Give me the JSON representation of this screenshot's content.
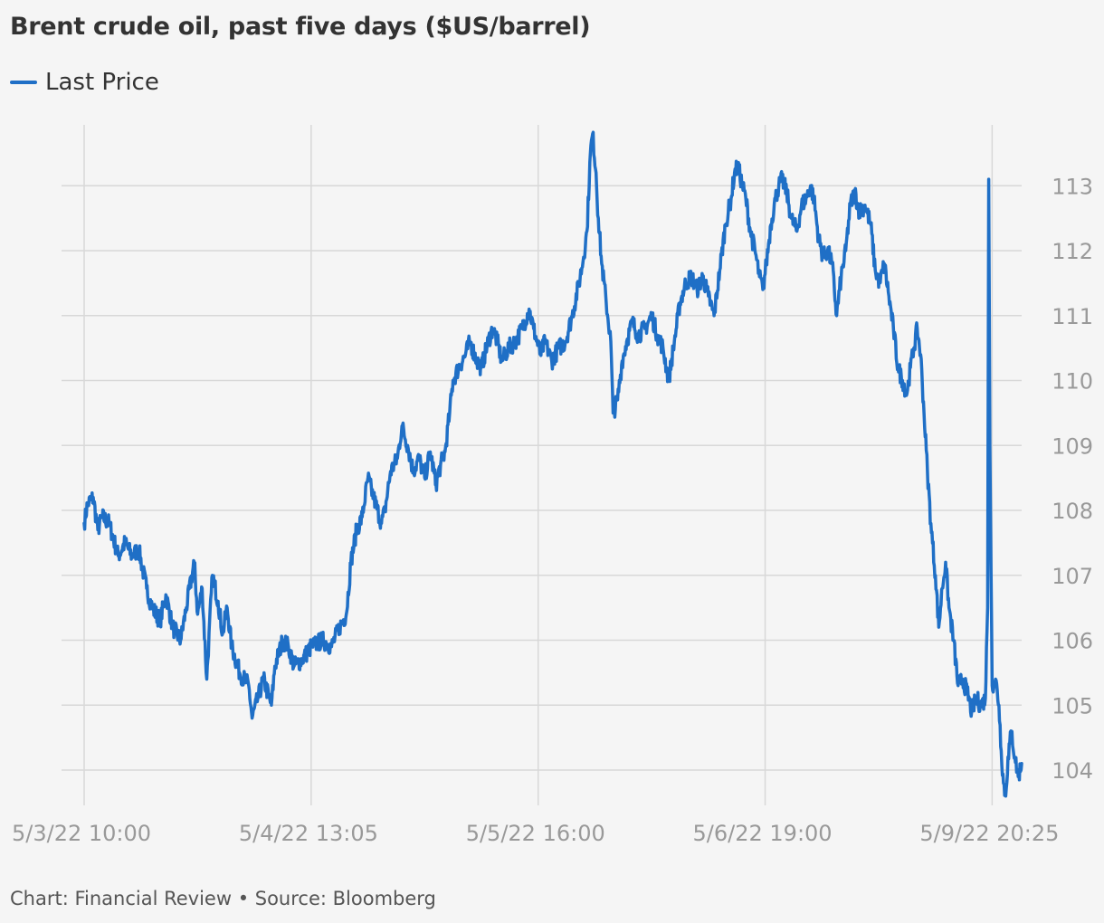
{
  "title": "Brent crude oil, past five days ($US/barrel)",
  "legend": {
    "label": "Last Price"
  },
  "source": "Chart: Financial Review • Source: Bloomberg",
  "colors": {
    "line": "#1f6fc6",
    "grid": "#d8d8d8",
    "tick": "#999999",
    "background": "#f5f5f5"
  },
  "chart_data": {
    "type": "line",
    "title": "Brent crude oil, past five days ($US/barrel)",
    "xlabel": "",
    "ylabel": "",
    "ylim": [
      103.45,
      114.0
    ],
    "y_axis_position": "right",
    "grid": true,
    "legend_position": "top-left",
    "yticks": [
      104,
      105,
      106,
      107,
      108,
      109,
      110,
      111,
      112,
      113
    ],
    "xticks": [
      {
        "label": "5/3/22 10:00",
        "index": 0
      },
      {
        "label": "5/4/22 13:05",
        "index": 200
      },
      {
        "label": "5/5/22 16:00",
        "index": 400
      },
      {
        "label": "5/6/22 19:00",
        "index": 600
      },
      {
        "label": "5/9/22 20:25",
        "index": 800
      }
    ],
    "series": [
      {
        "name": "Last Price",
        "anchors": [
          [
            0,
            107.8
          ],
          [
            3,
            108.1
          ],
          [
            8,
            108.2
          ],
          [
            12,
            107.7
          ],
          [
            16,
            107.9
          ],
          [
            22,
            107.8
          ],
          [
            30,
            107.3
          ],
          [
            36,
            107.5
          ],
          [
            42,
            107.3
          ],
          [
            48,
            107.4
          ],
          [
            55,
            106.8
          ],
          [
            60,
            106.5
          ],
          [
            67,
            106.3
          ],
          [
            72,
            106.7
          ],
          [
            78,
            106.2
          ],
          [
            85,
            106.0
          ],
          [
            90,
            106.5
          ],
          [
            97,
            107.2
          ],
          [
            100,
            106.4
          ],
          [
            104,
            106.8
          ],
          [
            108,
            105.4
          ],
          [
            113,
            107.0
          ],
          [
            118,
            106.6
          ],
          [
            122,
            106.1
          ],
          [
            126,
            106.5
          ],
          [
            130,
            105.9
          ],
          [
            137,
            105.5
          ],
          [
            145,
            105.3
          ],
          [
            148,
            104.8
          ],
          [
            153,
            105.1
          ],
          [
            158,
            105.4
          ],
          [
            165,
            105.0
          ],
          [
            168,
            105.6
          ],
          [
            175,
            106.0
          ],
          [
            180,
            105.9
          ],
          [
            185,
            105.6
          ],
          [
            192,
            105.7
          ],
          [
            200,
            105.9
          ],
          [
            210,
            106.0
          ],
          [
            218,
            105.9
          ],
          [
            225,
            106.2
          ],
          [
            231,
            106.4
          ],
          [
            235,
            107.2
          ],
          [
            240,
            107.7
          ],
          [
            245,
            107.9
          ],
          [
            250,
            108.5
          ],
          [
            255,
            108.2
          ],
          [
            262,
            107.8
          ],
          [
            265,
            108.0
          ],
          [
            270,
            108.6
          ],
          [
            276,
            108.8
          ],
          [
            280,
            109.3
          ],
          [
            285,
            109.0
          ],
          [
            290,
            108.6
          ],
          [
            295,
            108.8
          ],
          [
            300,
            108.5
          ],
          [
            305,
            108.9
          ],
          [
            310,
            108.4
          ],
          [
            314,
            108.7
          ],
          [
            318,
            108.9
          ],
          [
            322,
            109.5
          ],
          [
            325,
            110.0
          ],
          [
            330,
            110.2
          ],
          [
            336,
            110.4
          ],
          [
            340,
            110.6
          ],
          [
            346,
            110.3
          ],
          [
            350,
            110.2
          ],
          [
            356,
            110.6
          ],
          [
            360,
            110.8
          ],
          [
            364,
            110.6
          ],
          [
            368,
            110.3
          ],
          [
            374,
            110.5
          ],
          [
            380,
            110.6
          ],
          [
            386,
            110.8
          ],
          [
            392,
            111.1
          ],
          [
            396,
            110.8
          ],
          [
            402,
            110.4
          ],
          [
            406,
            110.6
          ],
          [
            412,
            110.3
          ],
          [
            418,
            110.5
          ],
          [
            424,
            110.6
          ],
          [
            430,
            111.0
          ],
          [
            436,
            111.5
          ],
          [
            440,
            111.9
          ],
          [
            443,
            112.3
          ],
          [
            446,
            113.5
          ],
          [
            448,
            113.8
          ],
          [
            451,
            113.2
          ],
          [
            453,
            112.5
          ],
          [
            456,
            111.8
          ],
          [
            460,
            111.2
          ],
          [
            464,
            110.6
          ],
          [
            466,
            109.5
          ],
          [
            470,
            109.7
          ],
          [
            474,
            110.3
          ],
          [
            478,
            110.6
          ],
          [
            483,
            110.9
          ],
          [
            488,
            110.7
          ],
          [
            494,
            110.8
          ],
          [
            500,
            111.0
          ],
          [
            505,
            110.7
          ],
          [
            510,
            110.5
          ],
          [
            515,
            110.0
          ],
          [
            520,
            110.6
          ],
          [
            525,
            111.2
          ],
          [
            530,
            111.5
          ],
          [
            535,
            111.6
          ],
          [
            540,
            111.4
          ],
          [
            545,
            111.6
          ],
          [
            550,
            111.3
          ],
          [
            555,
            111.0
          ],
          [
            560,
            111.7
          ],
          [
            565,
            112.4
          ],
          [
            570,
            112.8
          ],
          [
            573,
            113.2
          ],
          [
            576,
            113.3
          ],
          [
            580,
            113.0
          ],
          [
            583,
            112.8
          ],
          [
            587,
            112.3
          ],
          [
            591,
            112.0
          ],
          [
            595,
            111.6
          ],
          [
            598,
            111.4
          ],
          [
            601,
            111.8
          ],
          [
            605,
            112.4
          ],
          [
            609,
            112.8
          ],
          [
            612,
            113.0
          ],
          [
            615,
            113.1
          ],
          [
            619,
            112.9
          ],
          [
            623,
            112.5
          ],
          [
            628,
            112.3
          ],
          [
            632,
            112.7
          ],
          [
            636,
            112.8
          ],
          [
            640,
            113.0
          ],
          [
            643,
            112.8
          ],
          [
            647,
            112.2
          ],
          [
            651,
            111.9
          ],
          [
            655,
            112.0
          ],
          [
            659,
            111.8
          ],
          [
            663,
            111.0
          ],
          [
            667,
            111.6
          ],
          [
            671,
            112.0
          ],
          [
            675,
            112.7
          ],
          [
            679,
            112.9
          ],
          [
            683,
            112.6
          ],
          [
            688,
            112.7
          ],
          [
            693,
            112.4
          ],
          [
            697,
            111.7
          ],
          [
            701,
            111.5
          ],
          [
            705,
            111.8
          ],
          [
            709,
            111.3
          ],
          [
            713,
            110.8
          ],
          [
            717,
            110.2
          ],
          [
            721,
            110.0
          ],
          [
            725,
            109.8
          ],
          [
            728,
            110.2
          ],
          [
            731,
            110.5
          ],
          [
            734,
            110.8
          ],
          [
            737,
            110.4
          ],
          [
            740,
            109.5
          ],
          [
            743,
            108.6
          ],
          [
            746,
            107.8
          ],
          [
            750,
            107.0
          ],
          [
            753,
            106.2
          ],
          [
            756,
            106.8
          ],
          [
            759,
            107.2
          ],
          [
            762,
            106.5
          ],
          [
            766,
            106.0
          ],
          [
            770,
            105.3
          ],
          [
            774,
            105.4
          ],
          [
            778,
            105.2
          ],
          [
            782,
            104.9
          ],
          [
            786,
            105.1
          ],
          [
            790,
            105.0
          ],
          [
            794,
            105.1
          ],
          [
            796,
            106.5
          ],
          [
            797,
            113.1
          ],
          [
            798,
            109.0
          ],
          [
            800,
            105.3
          ],
          [
            803,
            105.4
          ],
          [
            806,
            105.0
          ],
          [
            808,
            104.3
          ],
          [
            810,
            103.8
          ],
          [
            812,
            103.6
          ],
          [
            814,
            104.2
          ],
          [
            817,
            104.6
          ],
          [
            820,
            104.2
          ],
          [
            823,
            103.9
          ],
          [
            826,
            104.1
          ]
        ]
      }
    ]
  }
}
